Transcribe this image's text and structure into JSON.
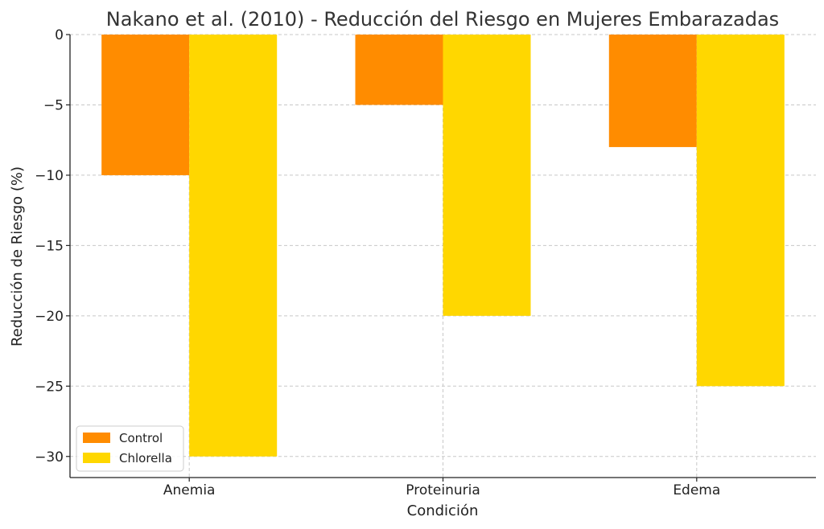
{
  "chart_data": {
    "type": "bar",
    "title": "Nakano et al. (2010) - Reducción del Riesgo en Mujeres Embarazadas",
    "xlabel": "Condición",
    "ylabel": "Reducción de Riesgo (%)",
    "categories": [
      "Anemia",
      "Proteinuria",
      "Edema"
    ],
    "series": [
      {
        "name": "Control",
        "values": [
          -10,
          -5,
          -8
        ],
        "color": "#FF8C00"
      },
      {
        "name": "Chlorella",
        "values": [
          -30,
          -20,
          -25
        ],
        "color": "#FFD700"
      }
    ],
    "ylim": [
      -31.5,
      0
    ],
    "yticks": [
      0,
      -5,
      -10,
      -15,
      -20,
      -25,
      -30
    ],
    "ytick_labels": [
      "0",
      "−5",
      "−10",
      "−15",
      "−20",
      "−25",
      "−30"
    ],
    "grid": true,
    "legend_position": "lower-left"
  }
}
